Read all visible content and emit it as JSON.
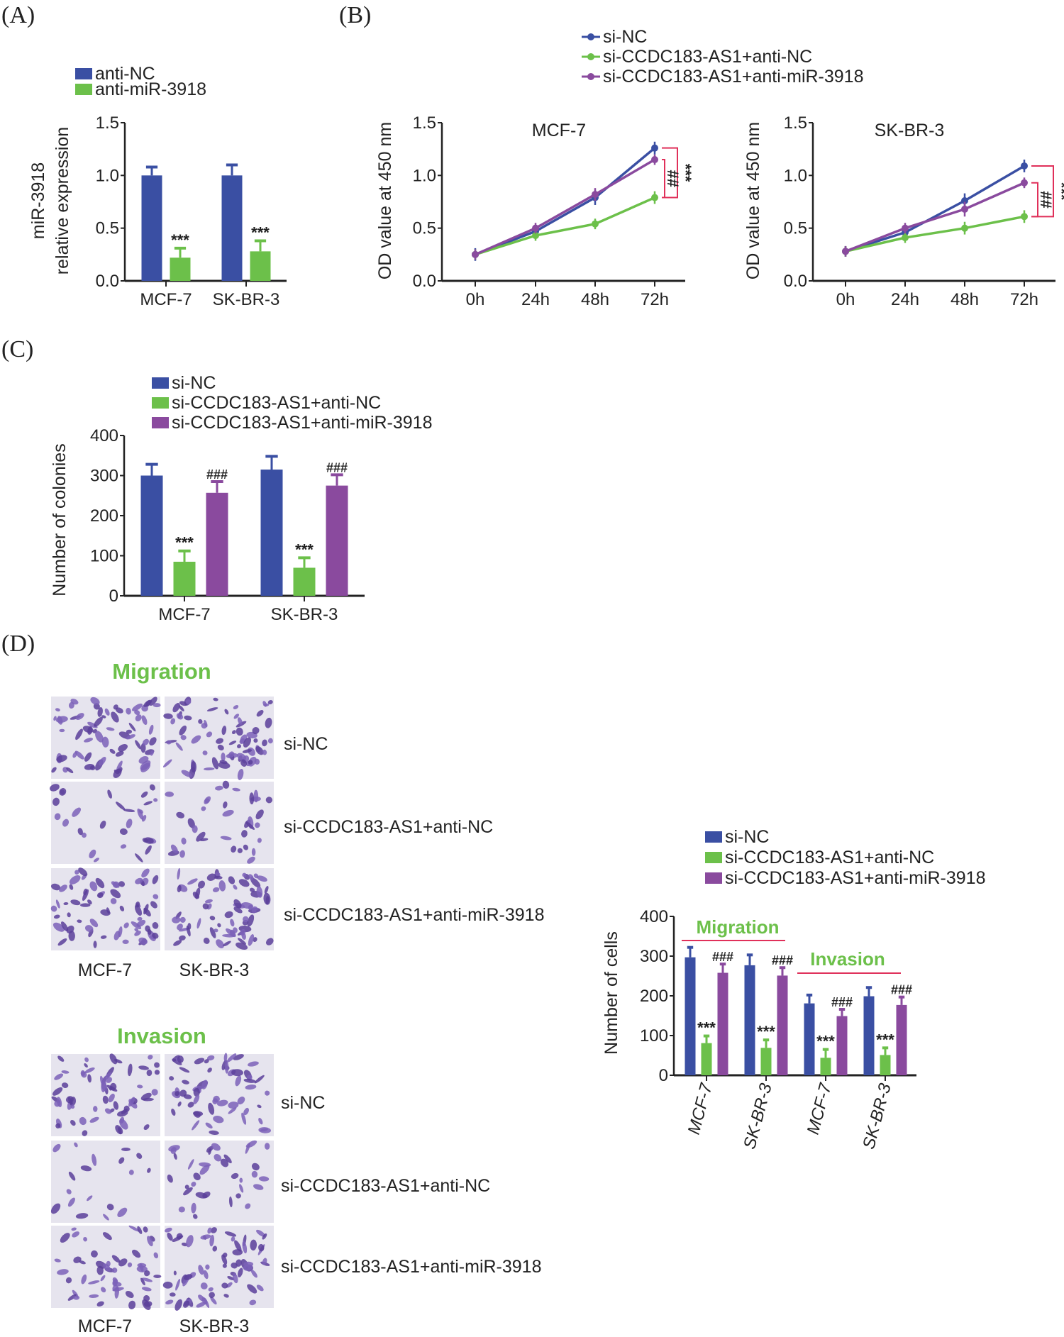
{
  "panel_labels": {
    "A": "(A)",
    "B": "(B)",
    "C": "(C)",
    "D": "(D)"
  },
  "colors": {
    "blue": "#3a4fa3",
    "green": "#6cc04a",
    "purple": "#8a4a9e",
    "bracket": "#e0305a"
  },
  "micrographs": {
    "migration_title": "Migration",
    "invasion_title": "Invasion",
    "row_labels": [
      "si-NC",
      "si-CCDC183-AS1+anti-NC",
      "si-CCDC183-AS1+anti-miR-3918"
    ],
    "column_labels": [
      "MCF-7",
      "SK-BR-3"
    ]
  },
  "chart_data": [
    {
      "id": "A",
      "type": "bar",
      "categories": [
        "MCF-7",
        "SK-BR-3"
      ],
      "ylabel": [
        "miR-3918",
        "relative expression"
      ],
      "ylim": [
        0,
        1.5
      ],
      "yticks": [
        "0.0",
        "0.5",
        "1.0",
        "1.5"
      ],
      "series": [
        {
          "name": "anti-NC",
          "color": "#3a4fa3",
          "values": [
            1.0,
            1.0
          ],
          "errors": [
            0.08,
            0.1
          ],
          "annotations": [
            "",
            ""
          ]
        },
        {
          "name": "anti-miR-3918",
          "color": "#6cc04a",
          "values": [
            0.22,
            0.28
          ],
          "errors": [
            0.09,
            0.1
          ],
          "annotations": [
            "***",
            "***"
          ]
        }
      ]
    },
    {
      "id": "B1",
      "type": "line",
      "title": "MCF-7",
      "x": [
        "0h",
        "24h",
        "48h",
        "72h"
      ],
      "ylabel": "OD value at 450 nm",
      "ylim": [
        0,
        1.5
      ],
      "yticks": [
        "0.0",
        "0.5",
        "1.0",
        "1.5"
      ],
      "series": [
        {
          "name": "si-NC",
          "color": "#3a4fa3",
          "values": [
            0.25,
            0.47,
            0.79,
            1.26
          ],
          "errors": [
            0.06,
            0.06,
            0.07,
            0.06
          ]
        },
        {
          "name": "si-CCDC183-AS1+anti-NC",
          "color": "#6cc04a",
          "values": [
            0.25,
            0.43,
            0.54,
            0.79
          ],
          "errors": [
            0.05,
            0.05,
            0.05,
            0.06
          ]
        },
        {
          "name": "si-CCDC183-AS1+anti-miR-3918",
          "color": "#8a4a9e",
          "values": [
            0.25,
            0.5,
            0.82,
            1.15
          ],
          "errors": [
            0.05,
            0.05,
            0.06,
            0.05
          ]
        }
      ],
      "brackets": [
        {
          "label": "***",
          "from": 1.26,
          "to": 0.79
        },
        {
          "label": "##",
          "from": 1.15,
          "to": 0.79
        }
      ]
    },
    {
      "id": "B2",
      "type": "line",
      "title": "SK-BR-3",
      "x": [
        "0h",
        "24h",
        "48h",
        "72h"
      ],
      "ylabel": "OD value at 450 nm",
      "ylim": [
        0,
        1.5
      ],
      "yticks": [
        "0.0",
        "0.5",
        "1.0",
        "1.5"
      ],
      "series": [
        {
          "name": "si-NC",
          "color": "#3a4fa3",
          "values": [
            0.28,
            0.46,
            0.76,
            1.09
          ],
          "errors": [
            0.05,
            0.06,
            0.07,
            0.06
          ]
        },
        {
          "name": "si-CCDC183-AS1+anti-NC",
          "color": "#6cc04a",
          "values": [
            0.28,
            0.41,
            0.5,
            0.61
          ],
          "errors": [
            0.05,
            0.05,
            0.06,
            0.06
          ]
        },
        {
          "name": "si-CCDC183-AS1+anti-miR-3918",
          "color": "#8a4a9e",
          "values": [
            0.28,
            0.5,
            0.68,
            0.93
          ],
          "errors": [
            0.05,
            0.05,
            0.07,
            0.05
          ]
        }
      ],
      "brackets": [
        {
          "label": "***",
          "from": 1.09,
          "to": 0.61
        },
        {
          "label": "##",
          "from": 0.93,
          "to": 0.61
        }
      ]
    },
    {
      "id": "C",
      "type": "bar",
      "categories": [
        "MCF-7",
        "SK-BR-3"
      ],
      "ylabel": "Number of colonies",
      "ylim": [
        0,
        400
      ],
      "yticks": [
        "0",
        "100",
        "200",
        "300",
        "400"
      ],
      "series": [
        {
          "name": "si-NC",
          "color": "#3a4fa3",
          "values": [
            300,
            315
          ],
          "errors": [
            28,
            33
          ],
          "annotations": [
            "",
            ""
          ]
        },
        {
          "name": "si-CCDC183-AS1+anti-NC",
          "color": "#6cc04a",
          "values": [
            85,
            70
          ],
          "errors": [
            27,
            25
          ],
          "annotations": [
            "***",
            "***"
          ]
        },
        {
          "name": "si-CCDC183-AS1+anti-miR-3918",
          "color": "#8a4a9e",
          "values": [
            257,
            275
          ],
          "errors": [
            28,
            27
          ],
          "annotations": [
            "###",
            "###"
          ]
        }
      ]
    },
    {
      "id": "D",
      "type": "bar",
      "categories": [
        "MCF-7",
        "SK-BR-3",
        "MCF-7",
        "SK-BR-3"
      ],
      "group_labels": [
        "Migration",
        "Invasion"
      ],
      "ylabel": "Number of cells",
      "ylim": [
        0,
        400
      ],
      "yticks": [
        "0",
        "100",
        "200",
        "300",
        "400"
      ],
      "series": [
        {
          "name": "si-NC",
          "color": "#3a4fa3",
          "values": [
            297,
            277,
            181,
            199
          ],
          "errors": [
            25,
            26,
            21,
            22
          ],
          "annotations": [
            "",
            "",
            "",
            ""
          ]
        },
        {
          "name": "si-CCDC183-AS1+anti-NC",
          "color": "#6cc04a",
          "values": [
            81,
            69,
            44,
            51
          ],
          "errors": [
            18,
            20,
            21,
            18
          ],
          "annotations": [
            "***",
            "***",
            "***",
            "***"
          ]
        },
        {
          "name": "si-CCDC183-AS1+anti-miR-3918",
          "color": "#8a4a9e",
          "values": [
            258,
            251,
            149,
            177
          ],
          "errors": [
            22,
            20,
            17,
            20
          ],
          "annotations": [
            "###",
            "###",
            "###",
            "###"
          ]
        }
      ]
    }
  ]
}
